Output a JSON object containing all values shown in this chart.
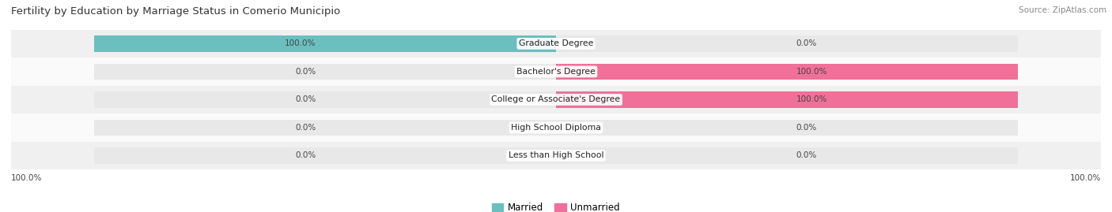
{
  "title": "Fertility by Education by Marriage Status in Comerio Municipio",
  "source": "Source: ZipAtlas.com",
  "categories": [
    "Less than High School",
    "High School Diploma",
    "College or Associate's Degree",
    "Bachelor's Degree",
    "Graduate Degree"
  ],
  "married_values": [
    0.0,
    0.0,
    0.0,
    0.0,
    100.0
  ],
  "unmarried_values": [
    0.0,
    0.0,
    100.0,
    100.0,
    0.0
  ],
  "married_color": "#6BBFBF",
  "unmarried_color": "#F0709A",
  "bar_bg_color": "#E8E8E8",
  "row_bg_even": "#F0F0F0",
  "row_bg_odd": "#FAFAFA",
  "title_fontsize": 9.5,
  "source_fontsize": 7.5,
  "bar_height": 0.58,
  "background_color": "#FFFFFF",
  "axis_label_left": "100.0%",
  "axis_label_right": "100.0%",
  "legend_married": "Married",
  "legend_unmarried": "Unmarried"
}
